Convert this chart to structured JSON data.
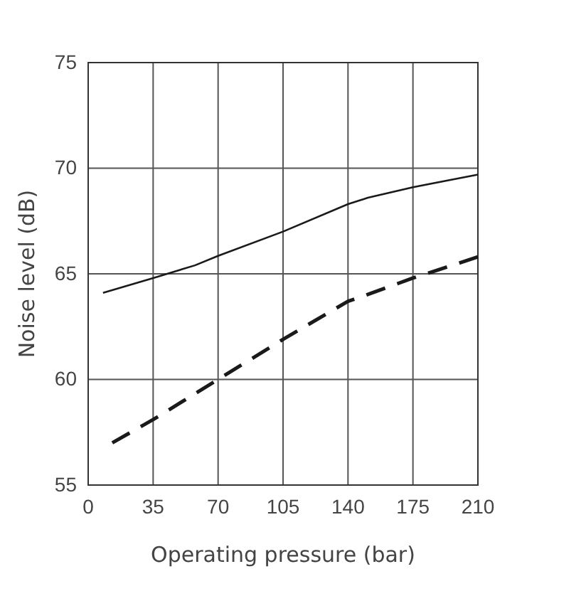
{
  "chart_data": {
    "type": "line",
    "xlabel": "Operating pressure (bar)",
    "ylabel": "Noise level (dB)",
    "xlim": [
      0,
      210
    ],
    "xticks": [
      0,
      35,
      70,
      105,
      140,
      175,
      210
    ],
    "ylim": [
      55,
      75
    ],
    "yticks": [
      55,
      60,
      65,
      70,
      75
    ],
    "grid": true,
    "series": [
      {
        "color": "#1a1a1a",
        "line_style": "solid",
        "x": [
          8,
          35,
          57.5,
          70,
          105,
          140,
          150.7,
          175,
          210
        ],
        "values": [
          64.1,
          64.8,
          65.4,
          65.85,
          67.0,
          68.3,
          68.6,
          69.1,
          69.7
        ]
      },
      {
        "color": "#1a1a1a",
        "line_style": "dashed",
        "x": [
          13,
          35,
          70,
          105,
          140,
          150,
          175,
          210
        ],
        "values": [
          57.0,
          58.1,
          60.0,
          61.9,
          63.7,
          64.0,
          64.8,
          65.8
        ]
      }
    ]
  }
}
